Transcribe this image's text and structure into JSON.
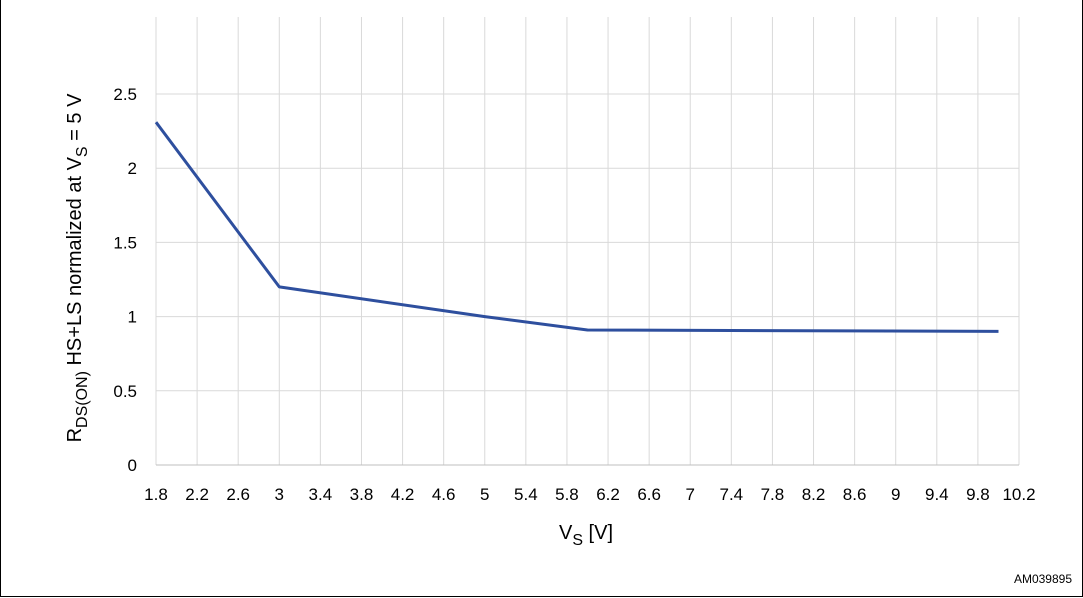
{
  "chart_data": {
    "type": "line",
    "xlabel": {
      "main": "V",
      "sub": "S",
      "suffix": " [V]"
    },
    "ylabel": {
      "lead": "R",
      "sub1": "DS(ON)",
      "middle": " HS+LS normalized  at V",
      "sub2": "S",
      "tail": " = 5 V"
    },
    "x_ticks": [
      "1.8",
      "2.2",
      "2.6",
      "3",
      "3.4",
      "3.8",
      "4.2",
      "4.6",
      "5",
      "5.4",
      "5.8",
      "6.2",
      "6.6",
      "7",
      "7.4",
      "7.8",
      "8.2",
      "8.6",
      "9",
      "9.4",
      "9.8",
      "10.2"
    ],
    "y_ticks": [
      "0",
      "0.5",
      "1",
      "1.5",
      "2",
      "2.5"
    ],
    "xlim": [
      1.8,
      10.2
    ],
    "ylim": [
      0,
      2.5
    ],
    "grid": true,
    "series": [
      {
        "color": "#2E4F9E",
        "x": [
          1.8,
          3.0,
          5.0,
          6.0,
          10.0
        ],
        "y": [
          2.31,
          1.2,
          1.0,
          0.91,
          0.9
        ]
      }
    ]
  },
  "figure_code": "AM039895"
}
